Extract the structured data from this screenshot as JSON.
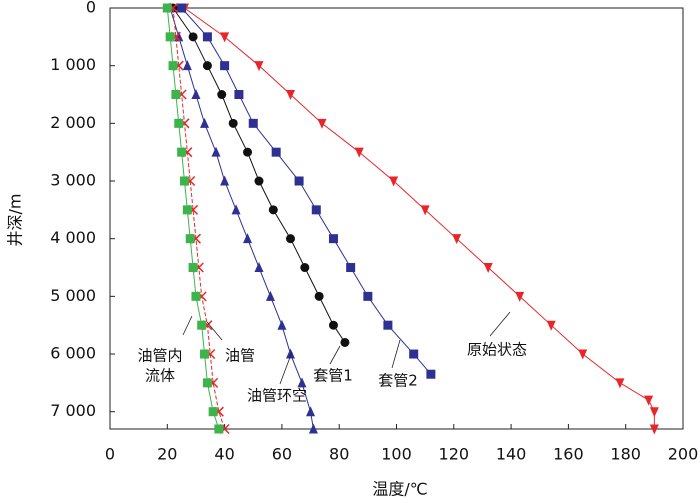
{
  "chart_data": {
    "type": "line",
    "xlabel": "温度/℃",
    "ylabel": "井深/m",
    "xlim": [
      0,
      200
    ],
    "xticks": [
      0,
      20,
      40,
      60,
      80,
      100,
      120,
      140,
      160,
      180,
      200
    ],
    "ylim": [
      0,
      7300
    ],
    "y_inverted": true,
    "yticks": [
      0,
      {
        "value": 1000,
        "label": "1 000"
      },
      {
        "value": 2000,
        "label": "2 000"
      },
      {
        "value": 3000,
        "label": "3 000"
      },
      {
        "value": 4000,
        "label": "4 000"
      },
      {
        "value": 5000,
        "label": "5 000"
      },
      {
        "value": 6000,
        "label": "6 000"
      },
      {
        "value": 7000,
        "label": "7 000"
      }
    ],
    "series": [
      {
        "name": "原始状态",
        "color": "#e8262a",
        "marker": "triangle-down",
        "x": [
          26,
          40,
          52,
          63,
          74,
          87,
          99,
          110,
          121,
          132,
          143,
          154,
          165,
          178,
          188,
          190,
          190
        ],
        "values": [
          0,
          500,
          1000,
          1500,
          2000,
          2500,
          3000,
          3500,
          4000,
          4500,
          5000,
          5500,
          6000,
          6500,
          6800,
          7000,
          7300
        ]
      },
      {
        "name": "套管2",
        "color": "#2e3192",
        "marker": "square",
        "x": [
          25,
          34,
          40,
          45,
          50,
          58,
          66,
          72,
          78,
          84,
          90,
          97,
          106,
          112
        ],
        "values": [
          0,
          500,
          1000,
          1500,
          2000,
          2500,
          3000,
          3500,
          4000,
          4500,
          5000,
          5500,
          6000,
          6350
        ]
      },
      {
        "name": "套管1",
        "color": "#111111",
        "marker": "circle",
        "x": [
          22,
          29,
          34,
          39,
          43,
          48,
          52,
          57,
          63,
          68,
          73,
          78,
          82
        ],
        "values": [
          0,
          500,
          1000,
          1500,
          2000,
          2500,
          3000,
          3500,
          4000,
          4500,
          5000,
          5500,
          5800
        ]
      },
      {
        "name": "油管环空",
        "color": "#2e3192",
        "marker": "triangle-up",
        "x": [
          21,
          24,
          27,
          30,
          33,
          37,
          40,
          44,
          48,
          52,
          56,
          60,
          63,
          67,
          70,
          71
        ],
        "values": [
          0,
          500,
          1000,
          1500,
          2000,
          2500,
          3000,
          3500,
          4000,
          4500,
          5000,
          5500,
          6000,
          6500,
          7000,
          7300
        ]
      },
      {
        "name": "油管",
        "color": "#e8262a",
        "marker": "x",
        "x": [
          22,
          23,
          24,
          25,
          26,
          27,
          28,
          29,
          30,
          31,
          32,
          34,
          35,
          36,
          38,
          40
        ],
        "values": [
          0,
          500,
          1000,
          1500,
          2000,
          2500,
          3000,
          3500,
          4000,
          4500,
          5000,
          5500,
          6000,
          6500,
          7000,
          7300
        ]
      },
      {
        "name": "油管内流体",
        "color": "#3cb44b",
        "marker": "square",
        "x": [
          20,
          21,
          22,
          23,
          24,
          25,
          26,
          27,
          28,
          29,
          30,
          32,
          33,
          34,
          36,
          38
        ],
        "values": [
          0,
          500,
          1000,
          1500,
          2000,
          2500,
          3000,
          3500,
          4000,
          4500,
          5000,
          5500,
          6000,
          6500,
          7000,
          7300
        ]
      }
    ],
    "annotations": [
      {
        "lines": [
          "油管内",
          "流体"
        ]
      },
      {
        "lines": [
          "油管"
        ]
      },
      {
        "lines": [
          "油管环空"
        ]
      },
      {
        "lines": [
          "套管1"
        ]
      },
      {
        "lines": [
          "套管2"
        ]
      },
      {
        "lines": [
          "原始状态"
        ]
      }
    ]
  }
}
